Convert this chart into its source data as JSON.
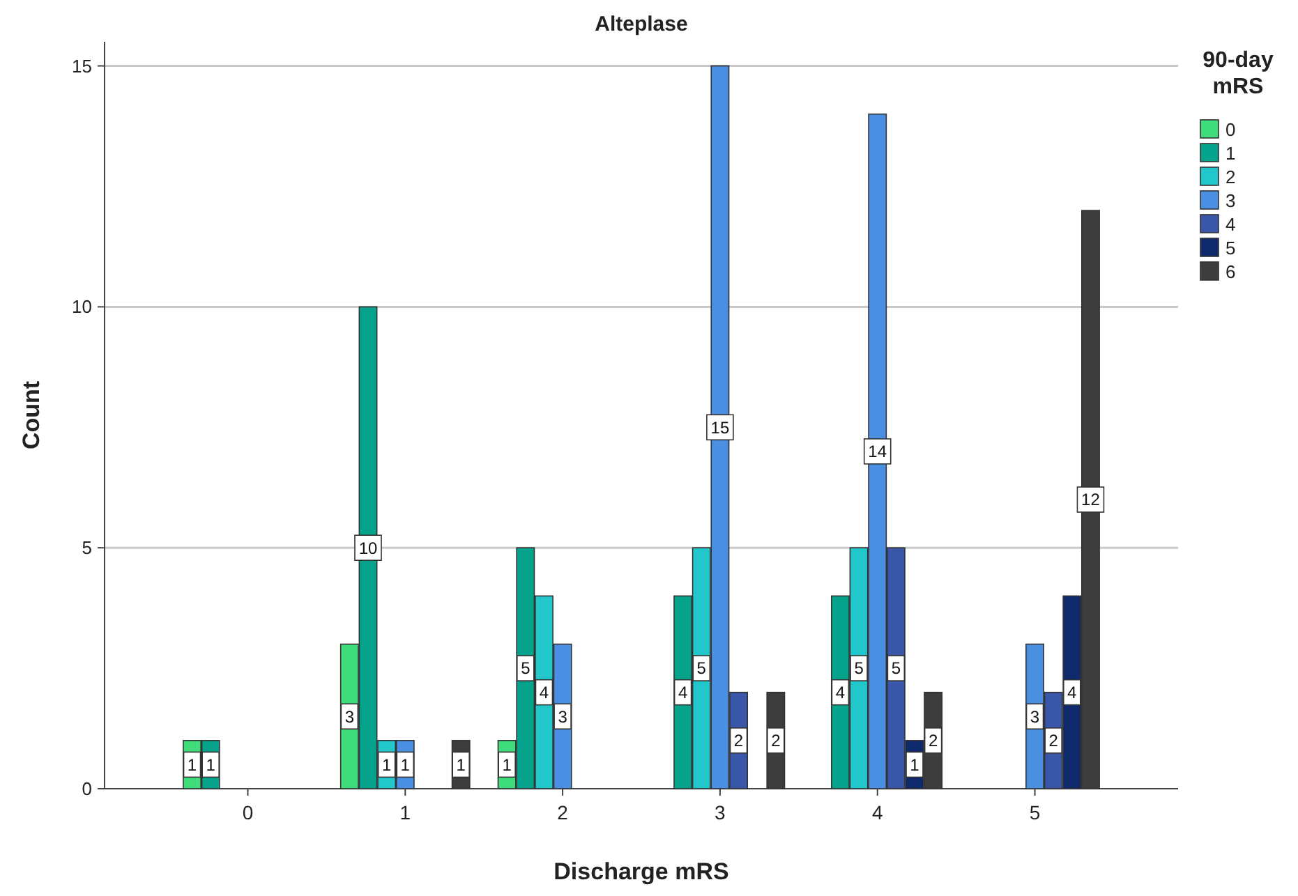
{
  "chart_data": {
    "type": "bar",
    "title": "Alteplase",
    "xlabel": "Discharge mRS",
    "ylabel": "Count",
    "legend_title": "90-day mRS",
    "categories": [
      "0",
      "1",
      "2",
      "3",
      "4",
      "5"
    ],
    "series": [
      {
        "name": "0",
        "color": "#3fdc7c",
        "values": [
          1,
          3,
          1,
          null,
          null,
          null
        ]
      },
      {
        "name": "1",
        "color": "#06a38c",
        "values": [
          1,
          10,
          5,
          4,
          4,
          null
        ]
      },
      {
        "name": "2",
        "color": "#22c7cb",
        "values": [
          null,
          1,
          4,
          5,
          5,
          null
        ]
      },
      {
        "name": "3",
        "color": "#4b8fe2",
        "values": [
          null,
          1,
          3,
          15,
          14,
          3
        ]
      },
      {
        "name": "4",
        "color": "#3a56a8",
        "values": [
          null,
          null,
          null,
          2,
          5,
          2
        ]
      },
      {
        "name": "5",
        "color": "#0e2a6c",
        "values": [
          null,
          null,
          null,
          null,
          1,
          4
        ]
      },
      {
        "name": "6",
        "color": "#3d3d3d",
        "values": [
          null,
          1,
          null,
          2,
          2,
          12
        ]
      }
    ],
    "ylim": [
      0,
      15.5
    ],
    "yticks": [
      0,
      5,
      10,
      15
    ],
    "grid": "y",
    "legend": "top right",
    "data_labels": true
  }
}
